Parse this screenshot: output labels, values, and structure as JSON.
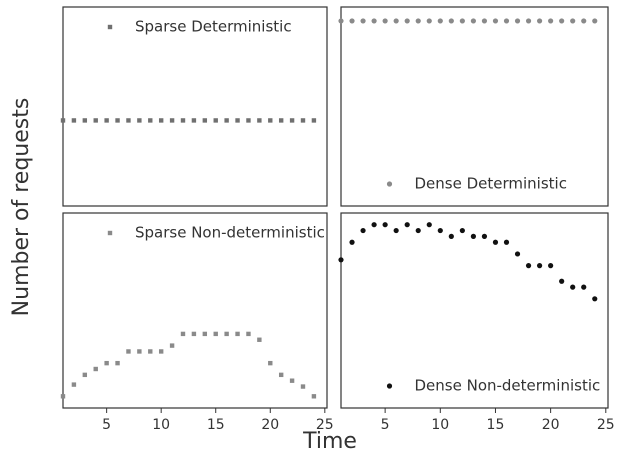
{
  "xlabel": "Time",
  "ylabel": "Number of requests",
  "chart_data": [
    {
      "type": "scatter",
      "xlim": [
        1,
        25.2
      ],
      "ylim": [
        0,
        10
      ],
      "legend": "upper center",
      "x": [
        1,
        2,
        3,
        4,
        5,
        6,
        7,
        8,
        9,
        10,
        11,
        12,
        13,
        14,
        15,
        16,
        17,
        18,
        19,
        20,
        21,
        22,
        23,
        24
      ],
      "series": [
        {
          "name": "Sparse Deterministic",
          "color": "#707070",
          "marker": "x",
          "values": [
            4.3,
            4.3,
            4.3,
            4.3,
            4.3,
            4.3,
            4.3,
            4.3,
            4.3,
            4.3,
            4.3,
            4.3,
            4.3,
            4.3,
            4.3,
            4.3,
            4.3,
            4.3,
            4.3,
            4.3,
            4.3,
            4.3,
            4.3,
            4.3
          ]
        }
      ]
    },
    {
      "type": "scatter",
      "xlim": [
        1,
        25.2
      ],
      "ylim": [
        0,
        10
      ],
      "legend": "lower center",
      "x": [
        1,
        2,
        3,
        4,
        5,
        6,
        7,
        8,
        9,
        10,
        11,
        12,
        13,
        14,
        15,
        16,
        17,
        18,
        19,
        20,
        21,
        22,
        23,
        24
      ],
      "series": [
        {
          "name": "Dense Deterministic",
          "color": "#8a8a8a",
          "marker": "o",
          "values": [
            9.3,
            9.3,
            9.3,
            9.3,
            9.3,
            9.3,
            9.3,
            9.3,
            9.3,
            9.3,
            9.3,
            9.3,
            9.3,
            9.3,
            9.3,
            9.3,
            9.3,
            9.3,
            9.3,
            9.3,
            9.3,
            9.3,
            9.3,
            9.3
          ]
        }
      ]
    },
    {
      "type": "scatter",
      "xlim": [
        1,
        25.2
      ],
      "ylim": [
        0,
        10
      ],
      "xticks": [
        5,
        10,
        15,
        20,
        25
      ],
      "legend": "upper center",
      "x": [
        1,
        2,
        3,
        4,
        5,
        6,
        7,
        8,
        9,
        10,
        11,
        12,
        13,
        14,
        15,
        16,
        17,
        18,
        19,
        20,
        21,
        22,
        23,
        24
      ],
      "series": [
        {
          "name": "Sparse Non-deterministic",
          "color": "#8a8a8a",
          "marker": "x",
          "values": [
            0.6,
            1.2,
            1.7,
            2.0,
            2.3,
            2.3,
            2.9,
            2.9,
            2.9,
            2.9,
            3.2,
            3.8,
            3.8,
            3.8,
            3.8,
            3.8,
            3.8,
            3.8,
            3.5,
            2.3,
            1.7,
            1.4,
            1.1,
            0.6
          ]
        }
      ]
    },
    {
      "type": "scatter",
      "xlim": [
        1,
        25.2
      ],
      "ylim": [
        0,
        10
      ],
      "xticks": [
        5,
        10,
        15,
        20,
        25
      ],
      "legend": "lower center",
      "x": [
        1,
        2,
        3,
        4,
        5,
        6,
        7,
        8,
        9,
        10,
        11,
        12,
        13,
        14,
        15,
        16,
        17,
        18,
        19,
        20,
        21,
        22,
        23,
        24
      ],
      "series": [
        {
          "name": "Dense Non-deterministic",
          "color": "#111111",
          "marker": "o",
          "values": [
            7.6,
            8.5,
            9.1,
            9.4,
            9.4,
            9.1,
            9.4,
            9.1,
            9.4,
            9.1,
            8.8,
            9.1,
            8.8,
            8.8,
            8.5,
            8.5,
            7.9,
            7.3,
            7.3,
            7.3,
            6.5,
            6.2,
            6.2,
            5.6
          ]
        }
      ]
    }
  ]
}
